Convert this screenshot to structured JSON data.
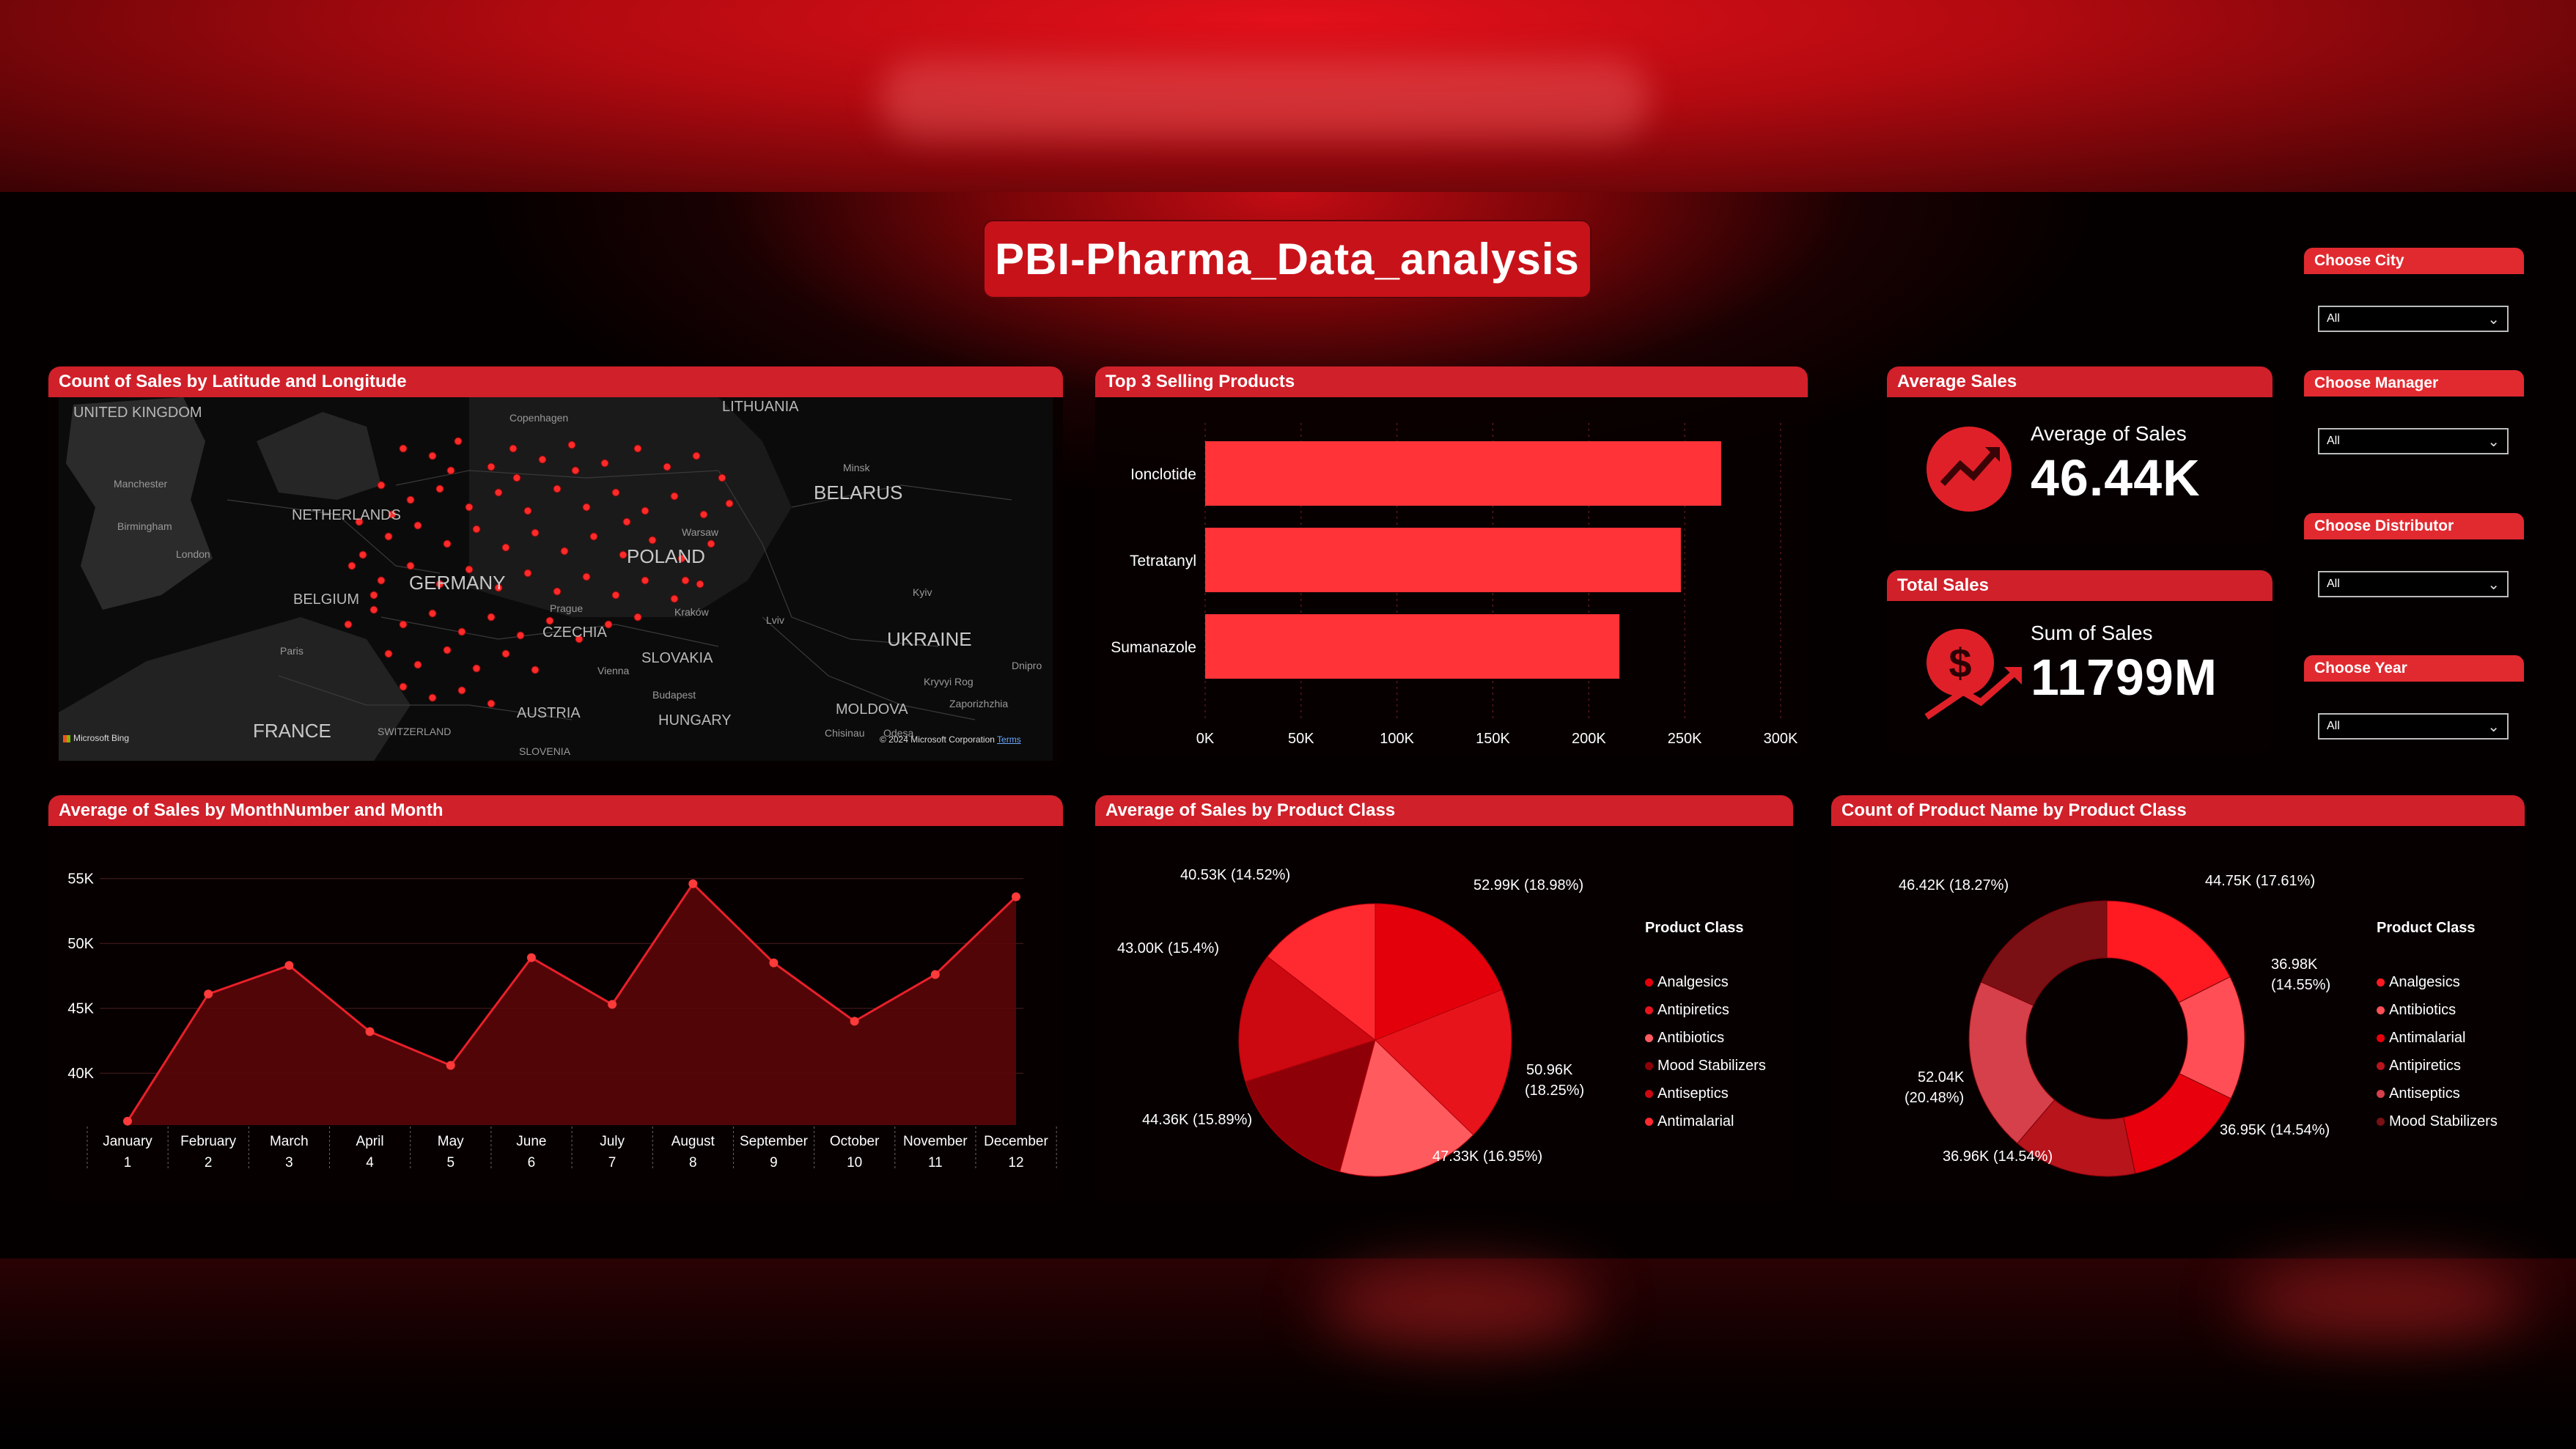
{
  "report": {
    "title": "PBI-Pharma_Data_analysis"
  },
  "map": {
    "header": "Count of Sales by Latitude and Longitude",
    "labels": [
      "UNITED KINGDOM",
      "LITHUANIA",
      "BELARUS",
      "NETHERLANDS",
      "GERMANY",
      "POLAND",
      "BELGIUM",
      "CZECHIA",
      "SLOVAKIA",
      "UKRAINE",
      "AUSTRIA",
      "HUNGARY",
      "FRANCE",
      "MOLDOVA",
      "SWITZERLAND",
      "SLOVENIA",
      "London",
      "Paris",
      "Prague",
      "Vienna",
      "Warsaw",
      "Kraków",
      "Budapest",
      "Minsk",
      "Kyiv",
      "Copenhagen",
      "Chisinau",
      "Odesa",
      "Dnipro",
      "Lviv",
      "Birmingham",
      "Manchester",
      "Kryvyi Rog",
      "Zaporizhzhia"
    ],
    "credit_left": "Microsoft Bing",
    "credit_right": "© 2024 Microsoft Corporation",
    "credit_terms": "Terms"
  },
  "top3": {
    "header": "Top 3 Selling Products",
    "ticks": [
      "0K",
      "50K",
      "100K",
      "150K",
      "200K",
      "250K",
      "300K"
    ]
  },
  "kpi_avg": {
    "header": "Average Sales",
    "label": "Average of Sales",
    "value": "46.44K"
  },
  "kpi_total": {
    "header": "Total Sales",
    "label": "Sum of Sales",
    "value": "11799M"
  },
  "slicers": [
    {
      "label": "Choose City",
      "value": "All"
    },
    {
      "label": "Choose Manager",
      "value": "All"
    },
    {
      "label": "Choose Distributor",
      "value": "All"
    },
    {
      "label": "Choose Year",
      "value": "All"
    }
  ],
  "line": {
    "header": "Average of Sales by MonthNumber and Month",
    "y_ticks": [
      "55K",
      "50K",
      "45K",
      "40K"
    ],
    "months": [
      "January",
      "February",
      "March",
      "April",
      "May",
      "June",
      "July",
      "August",
      "September",
      "October",
      "November",
      "December"
    ],
    "month_numbers": [
      "1",
      "2",
      "3",
      "4",
      "5",
      "6",
      "7",
      "8",
      "9",
      "10",
      "11",
      "12"
    ]
  },
  "pie": {
    "header": "Average of Sales by Product Class",
    "labels": [
      "52.99K (18.98%)",
      "50.96K",
      "(18.25%)",
      "47.33K (16.95%)",
      "44.36K (15.89%)",
      "43.00K (15.4%)",
      "40.53K (14.52%)"
    ],
    "legend_title": "Product Class",
    "legend": [
      "Analgesics",
      "Antipiretics",
      "Antibiotics",
      "Mood Stabilizers",
      "Antiseptics",
      "Antimalarial"
    ]
  },
  "donut": {
    "header": "Count of Product Name by Product Class",
    "labels": [
      "44.75K (17.61%)",
      "36.98K",
      "(14.55%)",
      "36.95K (14.54%)",
      "36.96K (14.54%)",
      "52.04K",
      "(20.48%)",
      "46.42K (18.27%)"
    ],
    "legend_title": "Product Class",
    "legend": [
      "Analgesics",
      "Antibiotics",
      "Antimalarial",
      "Antipiretics",
      "Antiseptics",
      "Mood Stabilizers"
    ]
  },
  "colors": {
    "accent": "#d0202a",
    "bar": "#ff3338",
    "line": "#e8202a"
  },
  "chart_data": [
    {
      "type": "bar",
      "title": "Top 3 Selling Products",
      "categories": [
        "Ionclotide",
        "Tetratanyl",
        "Sumanazole"
      ],
      "values": [
        269000,
        248000,
        216000
      ],
      "xlim": [
        0,
        300000
      ],
      "orientation": "horizontal"
    },
    {
      "type": "area",
      "title": "Average of Sales by MonthNumber and Month",
      "x": [
        "January",
        "February",
        "March",
        "April",
        "May",
        "June",
        "July",
        "August",
        "September",
        "October",
        "November",
        "December"
      ],
      "values": [
        36300,
        46100,
        48300,
        43200,
        40600,
        48900,
        45300,
        54600,
        48500,
        44000,
        47600,
        53600
      ],
      "ylim": [
        36000,
        56000
      ]
    },
    {
      "type": "pie",
      "title": "Average of Sales by Product Class",
      "categories": [
        "Analgesics",
        "Antipiretics",
        "Antibiotics",
        "Mood Stabilizers",
        "Antiseptics",
        "Antimalarial"
      ],
      "values": [
        52990,
        50960,
        47330,
        44360,
        43000,
        40530
      ],
      "percent": [
        18.98,
        18.25,
        16.95,
        15.89,
        15.4,
        14.52
      ]
    },
    {
      "type": "pie",
      "title": "Count of Product Name by Product Class",
      "categories": [
        "Analgesics",
        "Antibiotics",
        "Antimalarial",
        "Antipiretics",
        "Antiseptics",
        "Mood Stabilizers"
      ],
      "values": [
        44750,
        36980,
        36950,
        36960,
        52040,
        46420
      ],
      "percent": [
        17.61,
        14.55,
        14.54,
        14.54,
        20.48,
        18.27
      ],
      "donut": true
    }
  ]
}
